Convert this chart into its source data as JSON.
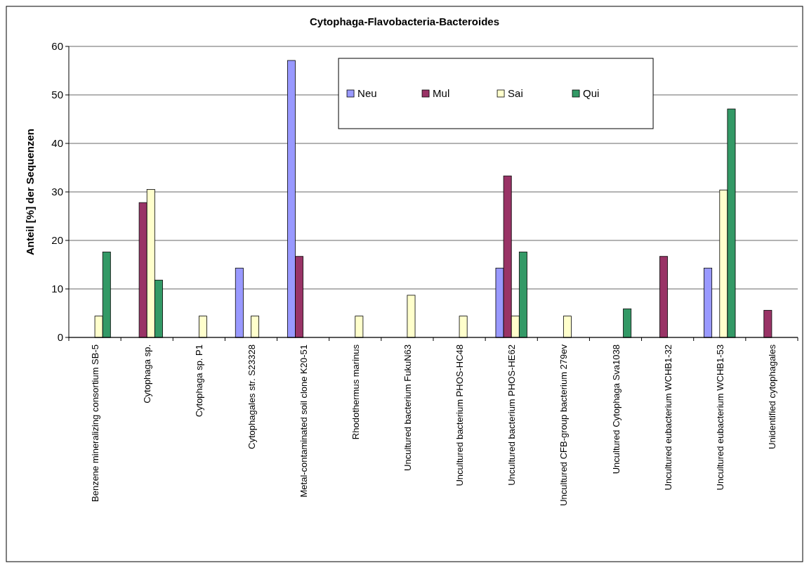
{
  "chart_data": {
    "type": "bar",
    "title": "Cytophaga-Flavobacteria-Bacteroides",
    "ylabel": "Anteil [%] der Sequenzen",
    "categories": [
      "Benzene mineralizing consortium SB-5",
      "Cytophaga sp.",
      "Cytophaga sp. P1",
      "Cytophagales str. S23328",
      "Metal-contaminated soil clone K20-51",
      "Rhodothermus marinus",
      "Uncultured bacterium FukuN63",
      "Uncultured bacterium PHOS-HC48",
      "Uncultured bacterium PHOS-HE62",
      "Uncultured CFB-group bacterium 279ev",
      "Uncultured Cytophaga Sva1038",
      "Uncultured eubacterium WCHB1-32",
      "Uncultured eubacterium WCHB1-53",
      "Unidentified cytophagales"
    ],
    "series": [
      {
        "name": "Neu",
        "color": "#9999ff",
        "values": [
          null,
          null,
          null,
          14.3,
          57.1,
          null,
          null,
          null,
          14.3,
          null,
          null,
          null,
          14.3,
          null
        ]
      },
      {
        "name": "Mul",
        "color": "#993366",
        "values": [
          null,
          27.8,
          null,
          null,
          16.7,
          null,
          null,
          null,
          33.3,
          null,
          null,
          16.7,
          null,
          5.6
        ]
      },
      {
        "name": "Sai",
        "color": "#ffffcc",
        "values": [
          4.4,
          30.5,
          4.4,
          4.4,
          null,
          4.4,
          8.7,
          4.4,
          4.4,
          4.4,
          null,
          null,
          30.4,
          null
        ]
      },
      {
        "name": "Qui",
        "color": "#339966",
        "values": [
          17.6,
          11.8,
          null,
          null,
          null,
          null,
          null,
          null,
          17.6,
          null,
          5.9,
          null,
          47.1,
          null
        ]
      }
    ],
    "ylim": [
      0,
      60
    ],
    "yticks": [
      0,
      10,
      20,
      30,
      40,
      50,
      60
    ],
    "grid": "y",
    "legend": "top"
  }
}
